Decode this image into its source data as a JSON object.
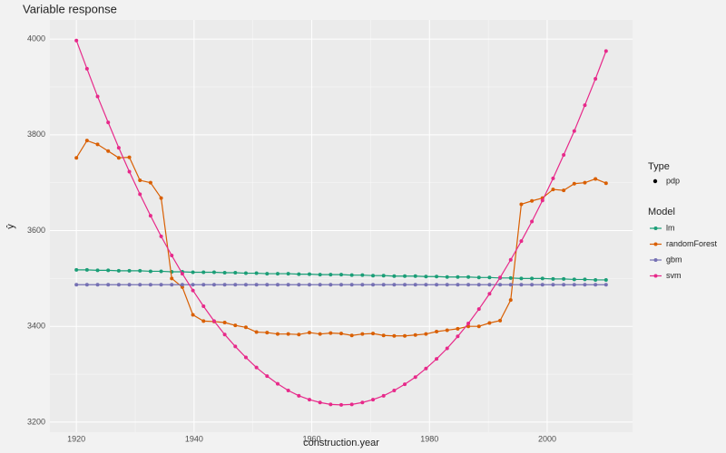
{
  "chart_data": {
    "type": "line",
    "title": "Variable response",
    "x_label": "construction.year",
    "y_label": "ŷ",
    "x": [
      1920,
      1921.8,
      1923.6,
      1925.4,
      1927.2,
      1929,
      1930.8,
      1932.6,
      1934.4,
      1936.2,
      1938,
      1939.8,
      1941.6,
      1943.4,
      1945.2,
      1947,
      1948.8,
      1950.6,
      1952.4,
      1954.2,
      1956,
      1957.8,
      1959.6,
      1961.4,
      1963.2,
      1965,
      1966.8,
      1968.6,
      1970.4,
      1972.2,
      1974,
      1975.8,
      1977.6,
      1979.4,
      1981.2,
      1983,
      1984.8,
      1986.6,
      1988.4,
      1990.2,
      1992,
      1993.8,
      1995.6,
      1997.4,
      1999.2,
      2001,
      2002.8,
      2004.6,
      2006.4,
      2008.2,
      2010
    ],
    "series": [
      {
        "name": "lm",
        "color": "#1b9e77",
        "values": [
          3518,
          3518,
          3517,
          3517,
          3516,
          3516,
          3516,
          3515,
          3515,
          3514,
          3514,
          3513,
          3513,
          3513,
          3512,
          3512,
          3511,
          3511,
          3510,
          3510,
          3510,
          3509,
          3509,
          3508,
          3508,
          3508,
          3507,
          3507,
          3506,
          3506,
          3505,
          3505,
          3505,
          3504,
          3504,
          3503,
          3503,
          3503,
          3502,
          3502,
          3501,
          3501,
          3500,
          3500,
          3500,
          3499,
          3499,
          3498,
          3498,
          3497,
          3497
        ]
      },
      {
        "name": "randomForest",
        "color": "#d95f02",
        "values": [
          3752,
          3788,
          3780,
          3766,
          3752,
          3753,
          3705,
          3700,
          3668,
          3500,
          3482,
          3424,
          3411,
          3410,
          3408,
          3402,
          3398,
          3388,
          3387,
          3384,
          3384,
          3383,
          3387,
          3384,
          3386,
          3385,
          3381,
          3384,
          3385,
          3381,
          3380,
          3380,
          3382,
          3384,
          3389,
          3392,
          3395,
          3400,
          3400,
          3407,
          3412,
          3455,
          3655,
          3662,
          3668,
          3686,
          3684,
          3698,
          3700,
          3708,
          3699
        ]
      },
      {
        "name": "gbm",
        "color": "#7570b3",
        "values": [
          3487,
          3487,
          3487,
          3487,
          3487,
          3487,
          3487,
          3487,
          3487,
          3487,
          3487,
          3487,
          3487,
          3487,
          3487,
          3487,
          3487,
          3487,
          3487,
          3487,
          3487,
          3487,
          3487,
          3487,
          3487,
          3487,
          3487,
          3487,
          3487,
          3487,
          3487,
          3487,
          3487,
          3487,
          3487,
          3487,
          3487,
          3487,
          3487,
          3487,
          3487,
          3487,
          3487,
          3487,
          3487,
          3487,
          3487,
          3487,
          3487,
          3487,
          3487
        ]
      },
      {
        "name": "svm",
        "color": "#e7298a",
        "values": [
          3997,
          3938,
          3880,
          3826,
          3773,
          3723,
          3676,
          3631,
          3588,
          3548,
          3510,
          3475,
          3442,
          3411,
          3383,
          3358,
          3335,
          3314,
          3296,
          3280,
          3266,
          3255,
          3247,
          3241,
          3237,
          3236,
          3237,
          3241,
          3247,
          3255,
          3266,
          3279,
          3294,
          3312,
          3332,
          3354,
          3379,
          3406,
          3436,
          3468,
          3502,
          3539,
          3578,
          3619,
          3663,
          3709,
          3758,
          3808,
          3862,
          3917,
          3975
        ]
      }
    ],
    "xlim": [
      1915.5,
      2014.5
    ],
    "xticks": [
      1920,
      1940,
      1960,
      1980,
      2000
    ],
    "ylim": [
      3179,
      4040
    ],
    "yticks": [
      3200,
      3400,
      3600,
      3800,
      4000
    ],
    "grid": true,
    "legend": "right",
    "type_legend": {
      "title": "Type",
      "entries": [
        "pdp"
      ]
    },
    "legend_title": "Model"
  }
}
